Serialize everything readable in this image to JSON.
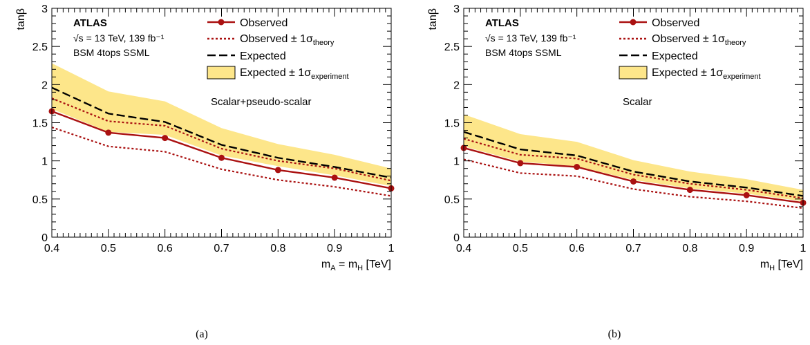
{
  "chart_data": [
    {
      "type": "line",
      "panel_caption": "(a)",
      "atlas_label": "ATLAS",
      "energy_lumi": "√s = 13 TeV, 139 fb⁻¹",
      "analysis_label": "BSM 4tops SSML",
      "model_label": "Scalar+pseudo-scalar",
      "xlabel": "m_A = m_H [TeV]",
      "ylabel": "tanβ",
      "xlim": [
        0.4,
        1.0
      ],
      "ylim": [
        0,
        3
      ],
      "xticks": [
        "0.4",
        "0.5",
        "0.6",
        "0.7",
        "0.8",
        "0.9",
        "1"
      ],
      "yticks": [
        "0",
        "0.5",
        "1",
        "1.5",
        "2",
        "2.5",
        "3"
      ],
      "legend": {
        "observed": "Observed",
        "observed_theory": "Observed ± 1σ_theory",
        "expected": "Expected",
        "expected_band": "Expected ± 1σ_experiment"
      },
      "x": [
        0.4,
        0.5,
        0.6,
        0.7,
        0.8,
        0.9,
        1.0
      ],
      "series": [
        {
          "name": "Observed",
          "values": [
            1.65,
            1.37,
            1.3,
            1.04,
            0.88,
            0.78,
            0.64
          ]
        },
        {
          "name": "Observed + 1σ_theory",
          "values": [
            1.82,
            1.52,
            1.46,
            1.16,
            1.0,
            0.9,
            0.74
          ]
        },
        {
          "name": "Observed - 1σ_theory",
          "values": [
            1.44,
            1.19,
            1.12,
            0.89,
            0.75,
            0.66,
            0.54
          ]
        },
        {
          "name": "Expected",
          "values": [
            1.96,
            1.62,
            1.51,
            1.21,
            1.04,
            0.92,
            0.78
          ]
        },
        {
          "name": "Expected + 1σ_experiment",
          "values": [
            2.28,
            1.91,
            1.78,
            1.43,
            1.22,
            1.08,
            0.9
          ]
        },
        {
          "name": "Expected - 1σ_experiment",
          "values": [
            1.68,
            1.38,
            1.34,
            1.07,
            0.93,
            0.81,
            0.67
          ]
        }
      ]
    },
    {
      "type": "line",
      "panel_caption": "(b)",
      "atlas_label": "ATLAS",
      "energy_lumi": "√s = 13 TeV, 139 fb⁻¹",
      "analysis_label": "BSM 4tops SSML",
      "model_label": "Scalar",
      "xlabel": "m_H [TeV]",
      "ylabel": "tanβ",
      "xlim": [
        0.4,
        1.0
      ],
      "ylim": [
        0,
        3
      ],
      "xticks": [
        "0.4",
        "0.5",
        "0.6",
        "0.7",
        "0.8",
        "0.9",
        "1"
      ],
      "yticks": [
        "0",
        "0.5",
        "1",
        "1.5",
        "2",
        "2.5",
        "3"
      ],
      "legend": {
        "observed": "Observed",
        "observed_theory": "Observed ± 1σ_theory",
        "expected": "Expected",
        "expected_band": "Expected ± 1σ_experiment"
      },
      "x": [
        0.4,
        0.5,
        0.6,
        0.7,
        0.8,
        0.9,
        1.0
      ],
      "series": [
        {
          "name": "Observed",
          "values": [
            1.17,
            0.97,
            0.92,
            0.73,
            0.62,
            0.55,
            0.45
          ]
        },
        {
          "name": "Observed + 1σ_theory",
          "values": [
            1.29,
            1.08,
            1.03,
            0.82,
            0.7,
            0.62,
            0.51
          ]
        },
        {
          "name": "Observed - 1σ_theory",
          "values": [
            1.02,
            0.84,
            0.8,
            0.63,
            0.53,
            0.47,
            0.38
          ]
        },
        {
          "name": "Expected",
          "values": [
            1.38,
            1.15,
            1.07,
            0.86,
            0.73,
            0.65,
            0.54
          ]
        },
        {
          "name": "Expected + 1σ_experiment",
          "values": [
            1.61,
            1.35,
            1.25,
            1.01,
            0.86,
            0.76,
            0.62
          ]
        },
        {
          "name": "Expected - 1σ_experiment",
          "values": [
            1.19,
            0.99,
            0.93,
            0.75,
            0.64,
            0.57,
            0.47
          ]
        }
      ]
    }
  ],
  "colors": {
    "observed": "#aa1111",
    "band_fill": "#fde68a",
    "band_edge": "#c9a21a",
    "expected": "#000000",
    "frame": "#000000"
  }
}
